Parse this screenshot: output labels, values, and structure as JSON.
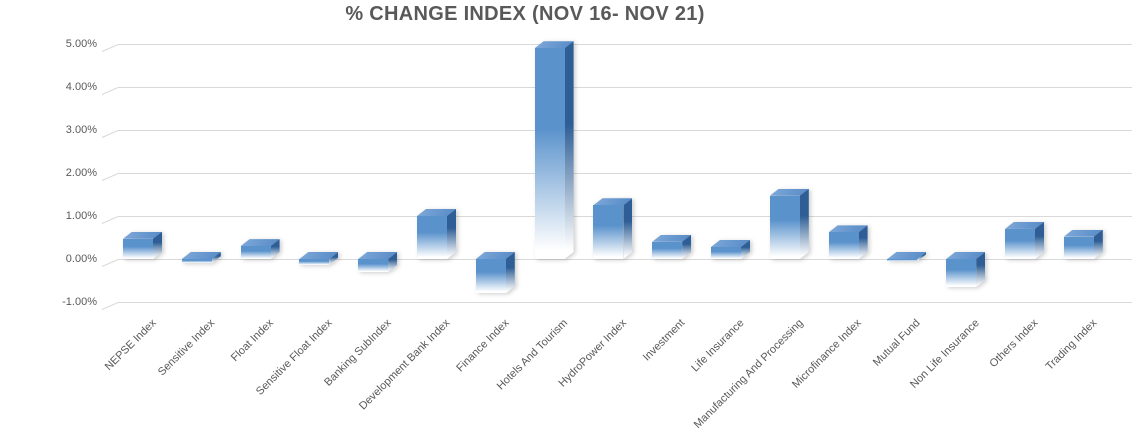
{
  "title": "% CHANGE INDEX (NOV 16- NOV 21)",
  "colors": {
    "title_text": "#595959",
    "axis_text": "#595959",
    "gridline": "#d9d9d9",
    "bar_front": "#5a92cc",
    "bar_top_light": "#7fa9d9",
    "bar_top_dark": "#5589c6",
    "bar_side": "#2e5e95",
    "fade_to": "#ffffff",
    "background": "#ffffff"
  },
  "chart_data": {
    "type": "bar",
    "style": "3d-gradient-bars",
    "title": "% CHANGE INDEX (NOV 16- NOV 21)",
    "xlabel": "",
    "ylabel": "",
    "ylim": [
      -1,
      5
    ],
    "grid": true,
    "legend": false,
    "yticks": [
      5,
      4,
      3,
      2,
      1,
      0,
      -1
    ],
    "ytick_labels": [
      "5.00%",
      "4.00%",
      "3.00%",
      "2.00%",
      "1.00%",
      "0.00%",
      "-1.00%"
    ],
    "categories": [
      "NEPSE Index",
      "Sensitive Index",
      "Float Index",
      "Sensitive Float Index",
      "Banking SubIndex",
      "Development Bank Index",
      "Finance Index",
      "Hotels And Tourism",
      "HydroPower Index",
      "Investment",
      "Life Insurance",
      "Manufacturing And Processing",
      "Microfinance Index",
      "Mutual Fund",
      "Non Life Insurance",
      "Others Index",
      "Trading Index"
    ],
    "values": [
      0.47,
      -0.1,
      0.3,
      -0.13,
      -0.3,
      1.0,
      -0.8,
      4.9,
      1.25,
      0.4,
      0.28,
      1.47,
      0.62,
      -0.05,
      -0.65,
      0.7,
      0.52
    ],
    "unit": "%"
  }
}
